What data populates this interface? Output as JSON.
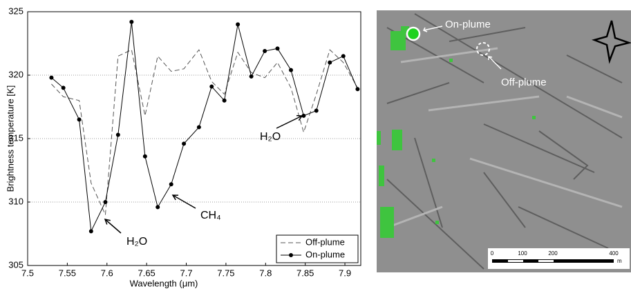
{
  "chart_data": {
    "type": "line",
    "x_label": "Wavelength (μm)",
    "y_label": "Brightness temperature [K]",
    "x": [
      7.53,
      7.545,
      7.565,
      7.58,
      7.598,
      7.614,
      7.631,
      7.648,
      7.664,
      7.681,
      7.697,
      7.716,
      7.732,
      7.748,
      7.765,
      7.782,
      7.799,
      7.815,
      7.832,
      7.848,
      7.864,
      7.881,
      7.898,
      7.916
    ],
    "series": [
      {
        "name": "Off-plume",
        "color": "#555555",
        "dashed": true,
        "markers": false,
        "values": [
          319.3,
          318.3,
          318.0,
          311.5,
          309.0,
          321.5,
          322.0,
          316.8,
          321.5,
          320.3,
          320.5,
          322.0,
          319.5,
          318.5,
          321.8,
          320.2,
          319.8,
          321.0,
          319.0,
          315.5,
          318.5,
          322.0,
          321.0,
          319.0
        ]
      },
      {
        "name": "On-plume",
        "color": "#000000",
        "dashed": false,
        "markers": true,
        "values": [
          319.8,
          319.0,
          316.5,
          307.7,
          310.0,
          315.3,
          324.2,
          313.6,
          309.6,
          311.4,
          314.6,
          315.9,
          319.1,
          318.0,
          324.0,
          319.9,
          321.9,
          322.1,
          320.4,
          316.8,
          317.2,
          321.0,
          321.5,
          318.9
        ]
      }
    ],
    "annotations": [
      "H₂O",
      "CH₄",
      "H₂O"
    ],
    "xlim": [
      7.5,
      7.92
    ],
    "ylim": [
      305,
      325
    ],
    "xticks": [
      7.5,
      7.55,
      7.6,
      7.65,
      7.7,
      7.75,
      7.8,
      7.85,
      7.9
    ],
    "yticks": [
      305,
      310,
      315,
      320,
      325
    ],
    "grid": true,
    "legend": "lower right"
  },
  "image": {
    "labels": [
      "On-plume",
      "Off-plume"
    ],
    "scale_bar": {
      "ticks": [
        "0",
        "100",
        "200",
        "400"
      ],
      "unit": "m"
    }
  }
}
